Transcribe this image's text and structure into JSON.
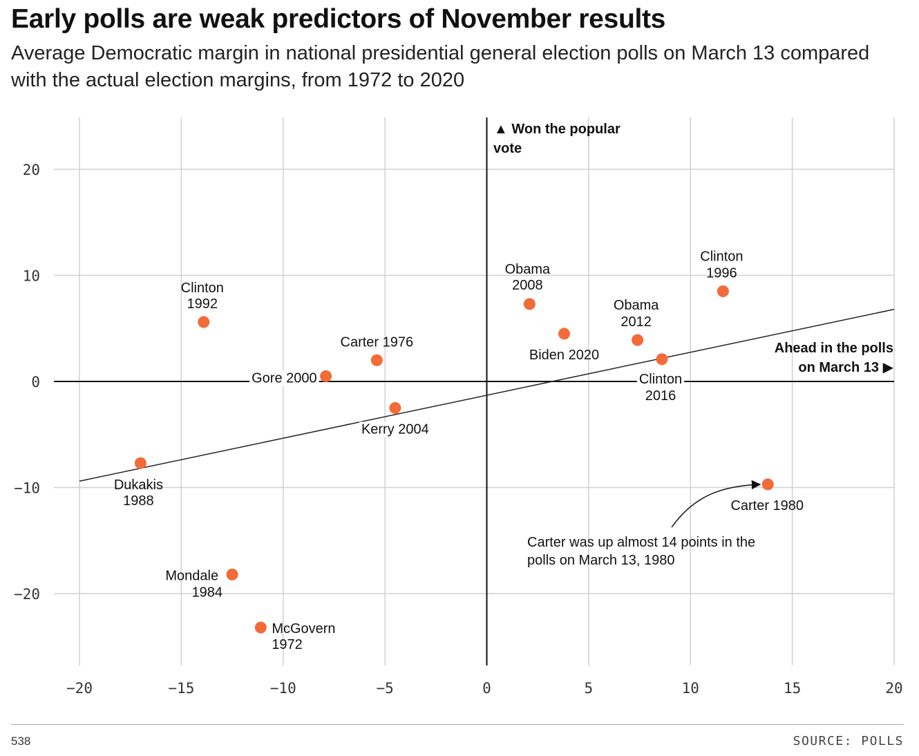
{
  "chart_data": {
    "type": "scatter",
    "title": "Early polls are weak predictors of November results",
    "subtitle": "Average Democratic margin in national presidential general election polls on March 13 compared with the actual election margins, from 1972 to 2020",
    "xlim": [
      -20,
      20
    ],
    "ylim": [
      -26,
      25
    ],
    "xticks": [
      -20,
      -15,
      -10,
      -5,
      0,
      5,
      10,
      15,
      20
    ],
    "yticks": [
      20,
      10,
      0,
      -10,
      -20
    ],
    "x_tick_labels": [
      "−20",
      "−15",
      "−10",
      "−5",
      "0",
      "5",
      "10",
      "15",
      "20"
    ],
    "y_tick_labels": [
      "20",
      "10",
      "0",
      "−10",
      "−20"
    ],
    "grid": true,
    "point_color": "#f26b38",
    "points": [
      {
        "name": "McGovern",
        "year": "1972",
        "x": -11.1,
        "y": -23.2
      },
      {
        "name": "Carter",
        "year": "1976",
        "x": -5.4,
        "y": 2.0
      },
      {
        "name": "Carter",
        "year": "1980",
        "x": 13.8,
        "y": -9.7
      },
      {
        "name": "Mondale",
        "year": "1984",
        "x": -12.5,
        "y": -18.2
      },
      {
        "name": "Dukakis",
        "year": "1988",
        "x": -17.0,
        "y": -7.7
      },
      {
        "name": "Clinton",
        "year": "1992",
        "x": -13.9,
        "y": 5.6
      },
      {
        "name": "Clinton",
        "year": "1996",
        "x": 11.6,
        "y": 8.5
      },
      {
        "name": "Gore",
        "year": "2000",
        "x": -7.9,
        "y": 0.5
      },
      {
        "name": "Kerry",
        "year": "2004",
        "x": -4.5,
        "y": -2.5
      },
      {
        "name": "Obama",
        "year": "2008",
        "x": 2.1,
        "y": 7.3
      },
      {
        "name": "Obama",
        "year": "2012",
        "x": 7.4,
        "y": 3.9
      },
      {
        "name": "Clinton",
        "year": "2016",
        "x": 8.6,
        "y": 2.1
      },
      {
        "name": "Biden",
        "year": "2020",
        "x": 3.8,
        "y": 4.5
      }
    ],
    "trend_line": {
      "x": [
        -20,
        20
      ],
      "y": [
        -9.4,
        6.8
      ]
    },
    "annotations": {
      "y_axis_note": [
        "▲ Won the popular",
        "vote"
      ],
      "x_axis_note": [
        "Ahead in the polls",
        "on March 13 ▶"
      ],
      "carter_1980_note": [
        "Carter was up almost 14 points in the",
        "polls on March 13, 1980"
      ]
    }
  },
  "footer": {
    "brand": "538",
    "source": "SOURCE: POLLS"
  }
}
